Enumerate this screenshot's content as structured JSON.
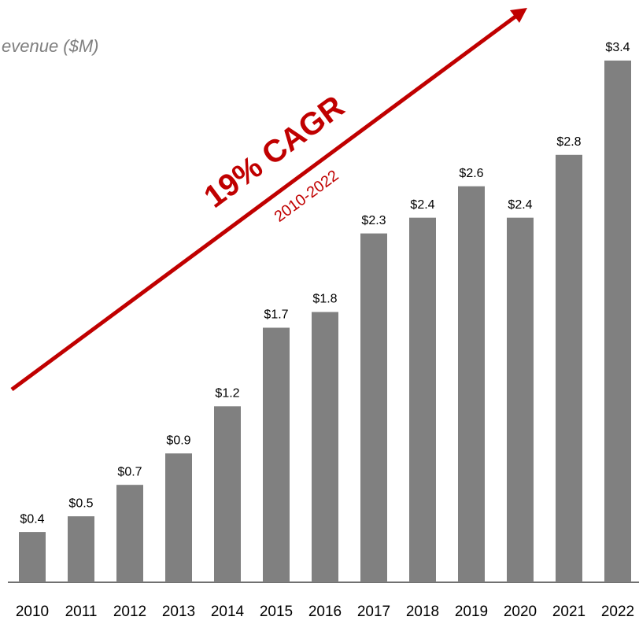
{
  "chart_data": {
    "type": "bar",
    "title": "evenue ($M)",
    "categories": [
      "2010",
      "2011",
      "2012",
      "2013",
      "2014",
      "2015",
      "2016",
      "2017",
      "2018",
      "2019",
      "2020",
      "2021",
      "2022"
    ],
    "values": [
      0.4,
      0.5,
      0.7,
      0.9,
      1.2,
      1.7,
      1.8,
      2.3,
      2.4,
      2.6,
      2.4,
      2.8,
      3.4
    ],
    "value_labels": [
      "$0.4",
      "$0.5",
      "$0.7",
      "$0.9",
      "$1.2",
      "$1.7",
      "$1.8",
      "$2.3",
      "$2.4",
      "$2.6",
      "$2.4",
      "$2.8",
      "$3.4"
    ],
    "color": "#808080",
    "ylim": [
      0.08,
      3.55
    ],
    "annotations": [
      "19% CAGR",
      "2010-2022"
    ]
  }
}
